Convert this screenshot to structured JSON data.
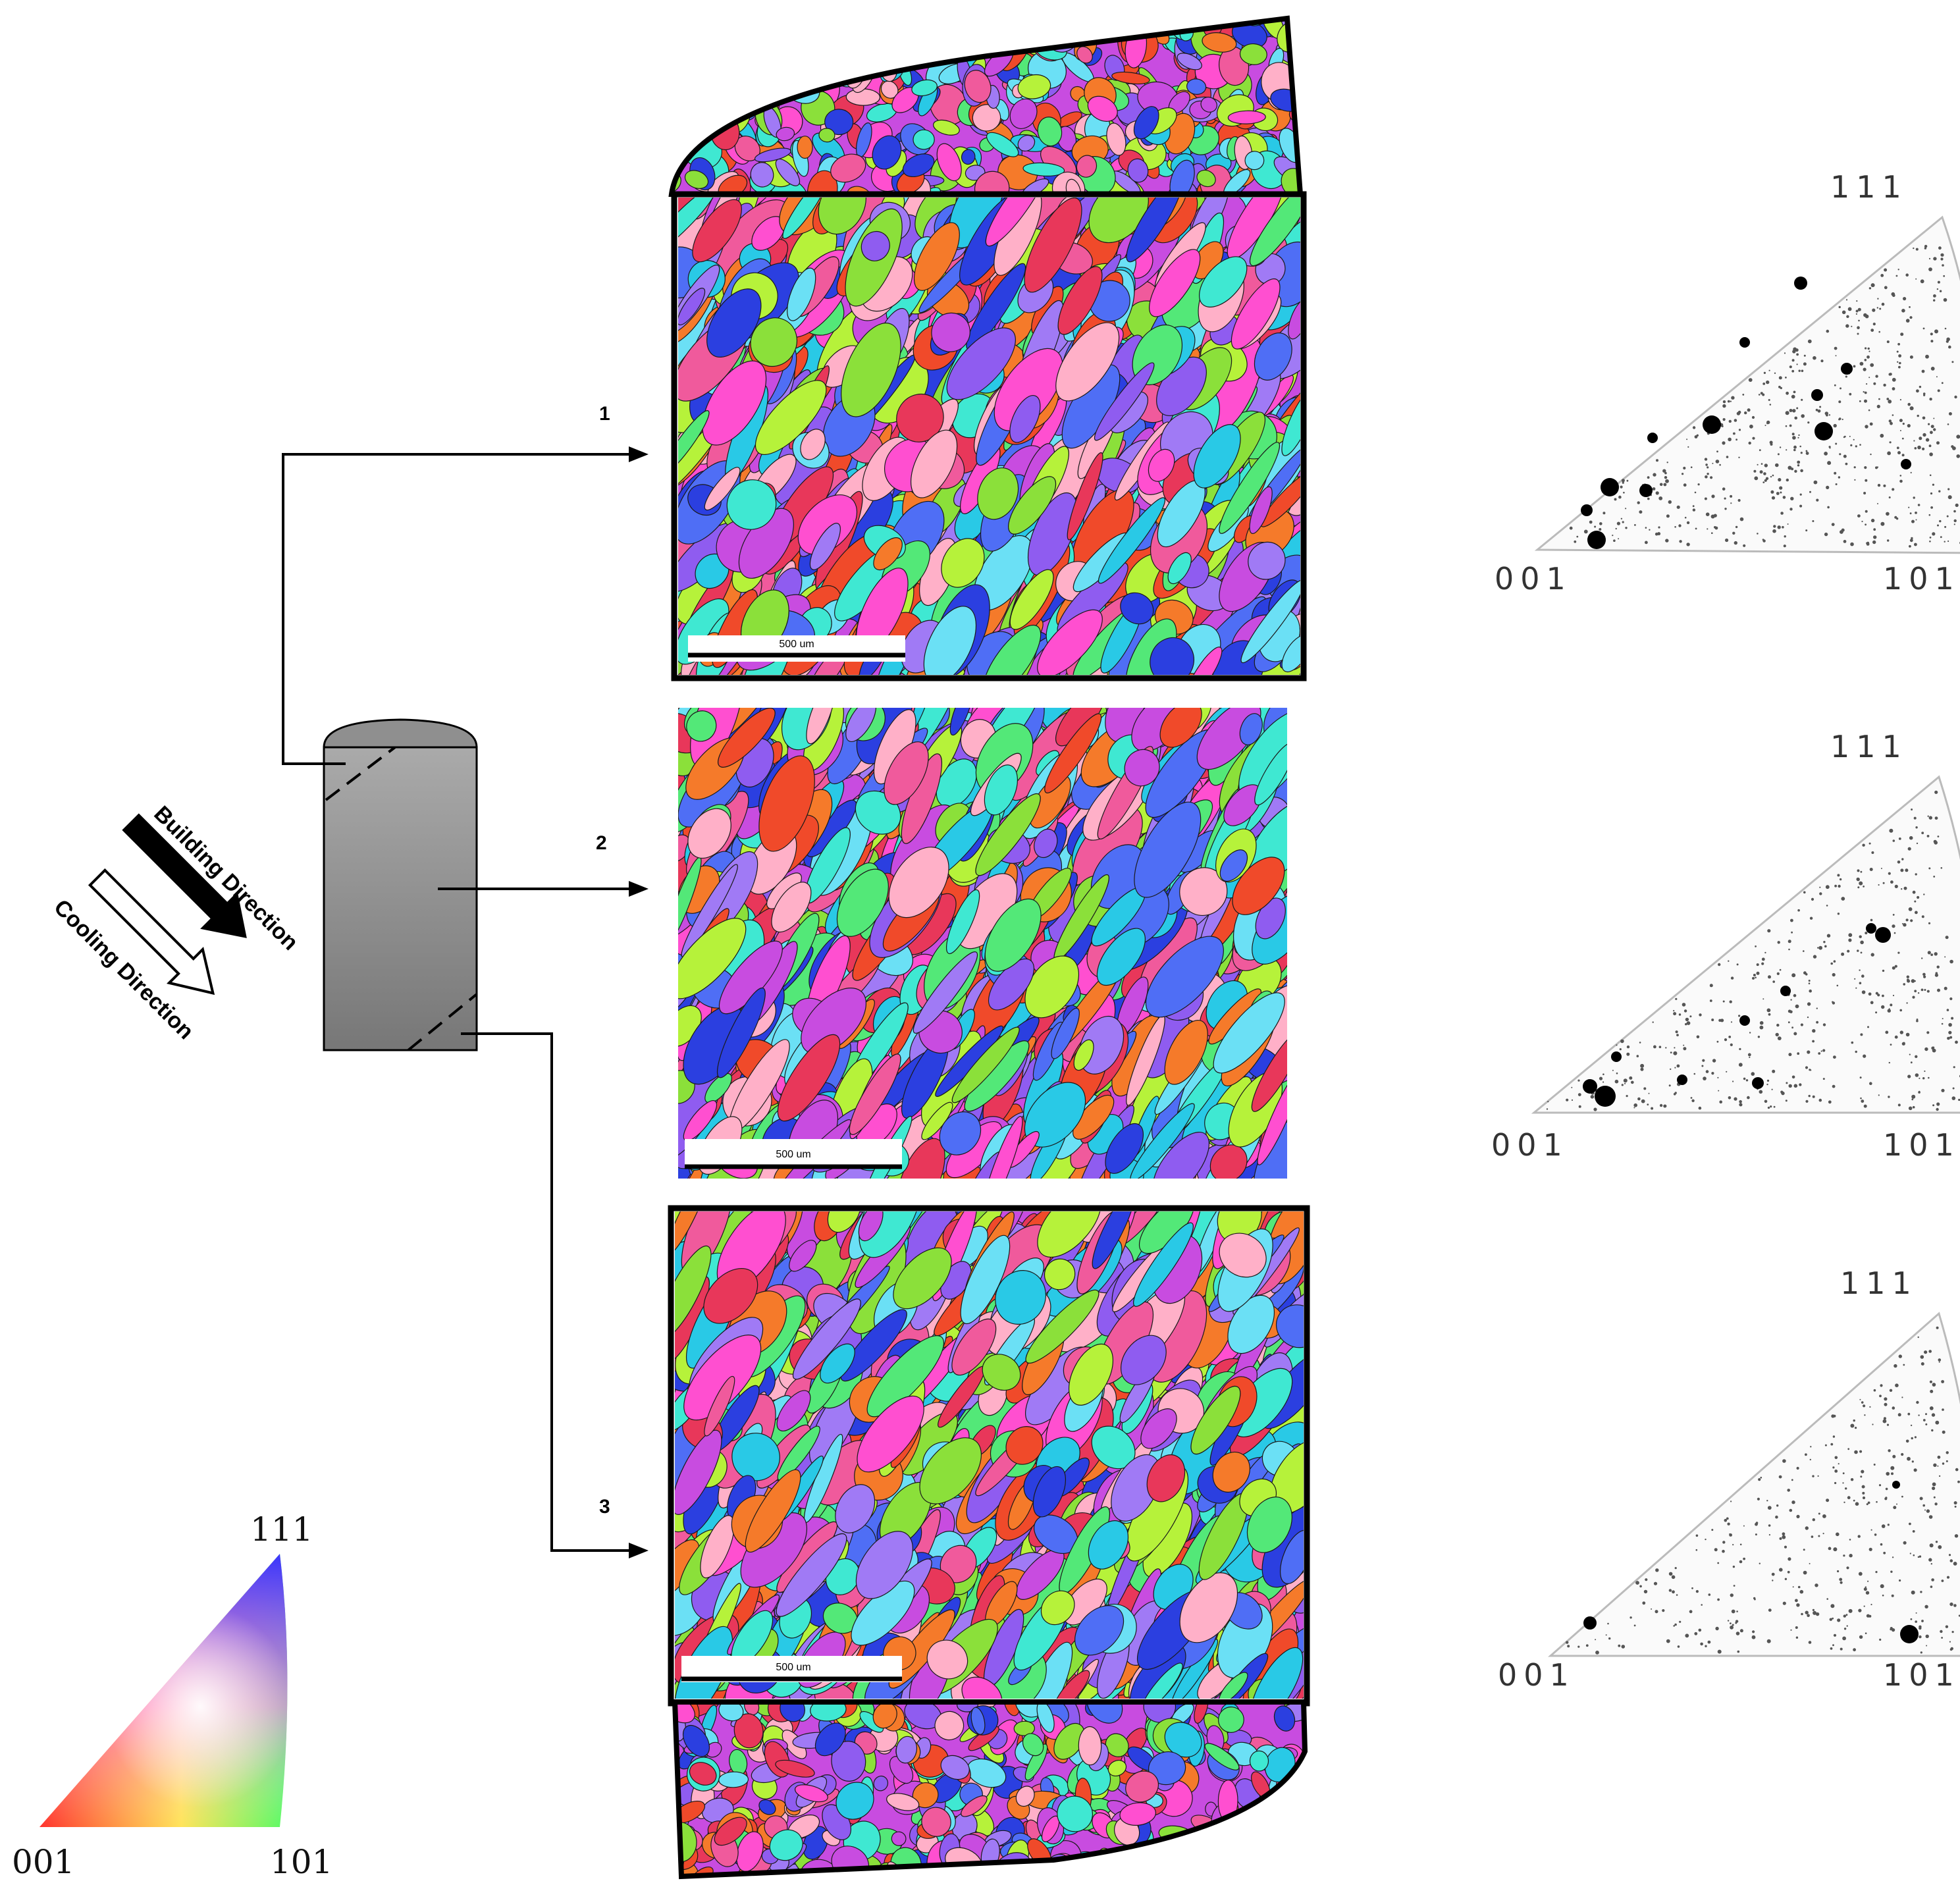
{
  "sample_labels": [
    "1",
    "2",
    "3"
  ],
  "directions": {
    "building": "Building Direction",
    "cooling": "Cooling Direction"
  },
  "ebsd_maps": [
    {
      "id": "1",
      "scale_bar": "500 um"
    },
    {
      "id": "2",
      "scale_bar": "500 um"
    },
    {
      "id": "3",
      "scale_bar": "500 um"
    }
  ],
  "pole_figures": [
    {
      "id": "1",
      "top": "111",
      "left": "001",
      "right": "101"
    },
    {
      "id": "2",
      "top": "111",
      "left": "001",
      "right": "101"
    },
    {
      "id": "3",
      "top": "111",
      "left": "001",
      "right": "101"
    }
  ],
  "color_key": {
    "top": "111",
    "left": "001",
    "right": "101"
  },
  "colors": {
    "grain_palette": [
      "#e8375a",
      "#f05a9c",
      "#c84ce0",
      "#8f5cf0",
      "#4f6ef5",
      "#2b3fe0",
      "#29c9e6",
      "#3fe8d2",
      "#53e878",
      "#8be03a",
      "#b6f23a",
      "#f04a2a",
      "#f57a2a",
      "#ff4fd0",
      "#6be0f5",
      "#a07af5",
      "#ffb0c8"
    ],
    "cylinder": "#8a8a8a",
    "arrow_fill": "#000000"
  }
}
